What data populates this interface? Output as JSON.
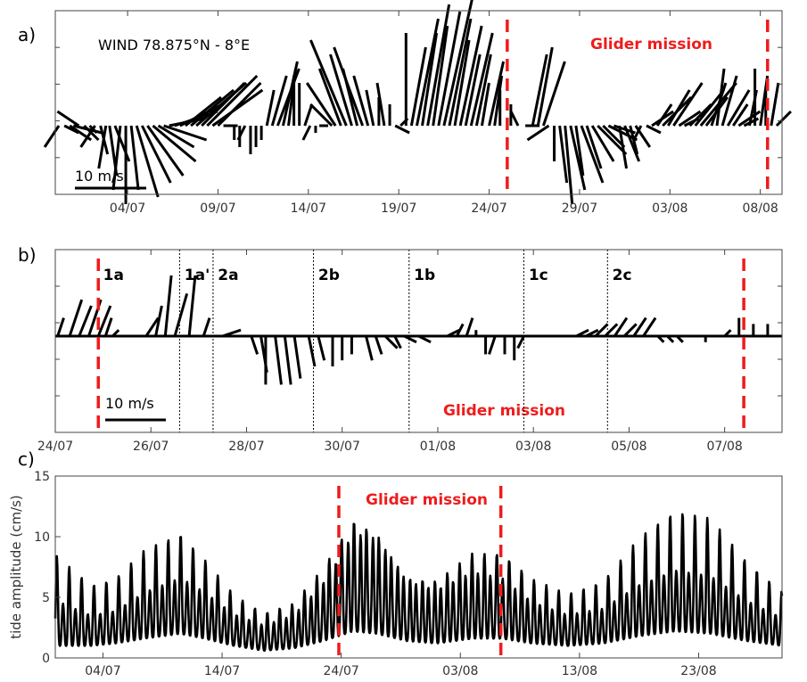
{
  "colors": {
    "mission": "#ee1c1c",
    "sticks": "#000000",
    "frame": "#444444"
  },
  "chart_data": [
    {
      "type": "stick",
      "panel_label": "a)",
      "title": "WIND 78.875°N - 8°E",
      "x_start": "2016-06-30",
      "xlim_days": [
        0,
        40.2
      ],
      "xticks": [
        {
          "label": "04/07",
          "day": 4
        },
        {
          "label": "09/07",
          "day": 9
        },
        {
          "label": "14/07",
          "day": 14
        },
        {
          "label": "19/07",
          "day": 19
        },
        {
          "label": "24/07",
          "day": 24
        },
        {
          "label": "29/07",
          "day": 29
        },
        {
          "label": "03/08",
          "day": 34
        },
        {
          "label": "08/08",
          "day": 39
        }
      ],
      "ylim": [
        -12,
        24
      ],
      "scale_label": "10 m/s",
      "scale_value": 10,
      "mission_label": "Glider mission",
      "mission_lines_days": [
        25.0,
        39.4
      ],
      "sticks": [
        [
          0.2,
          -2,
          -3
        ],
        [
          0.5,
          2,
          -1
        ],
        [
          0.8,
          3,
          -2
        ],
        [
          1.0,
          4,
          -1
        ],
        [
          1.3,
          -3,
          2
        ],
        [
          1.6,
          2,
          -2
        ],
        [
          1.9,
          1,
          -1
        ],
        [
          2.2,
          -2,
          -3
        ],
        [
          2.5,
          1,
          -4
        ],
        [
          2.8,
          -1,
          -6
        ],
        [
          3.0,
          1,
          -7
        ],
        [
          3.3,
          2,
          -5
        ],
        [
          3.6,
          -1,
          -9
        ],
        [
          3.9,
          0,
          -11
        ],
        [
          4.2,
          1,
          -9
        ],
        [
          4.5,
          3,
          -10
        ],
        [
          4.8,
          4,
          -8
        ],
        [
          5.1,
          5,
          -7
        ],
        [
          5.4,
          6,
          -5
        ],
        [
          5.7,
          5,
          -3
        ],
        [
          6.0,
          6,
          -2
        ],
        [
          6.3,
          5,
          1
        ],
        [
          6.6,
          6,
          2
        ],
        [
          6.9,
          6,
          3
        ],
        [
          7.2,
          5,
          4
        ],
        [
          7.5,
          6,
          5
        ],
        [
          7.8,
          7,
          6
        ],
        [
          8.1,
          6,
          6
        ],
        [
          8.4,
          7,
          7
        ],
        [
          8.7,
          7,
          5
        ],
        [
          9.0,
          6,
          6
        ],
        [
          9.3,
          2,
          0
        ],
        [
          9.6,
          1,
          0
        ],
        [
          9.9,
          0,
          -2
        ],
        [
          10.2,
          0,
          -3
        ],
        [
          10.5,
          -1,
          -2
        ],
        [
          10.8,
          0,
          -4
        ],
        [
          11.1,
          0,
          -3
        ],
        [
          11.4,
          0,
          -2
        ],
        [
          11.7,
          1,
          5
        ],
        [
          12.0,
          2,
          7
        ],
        [
          12.3,
          3,
          8
        ],
        [
          12.6,
          2,
          9
        ],
        [
          12.9,
          1,
          8
        ],
        [
          13.2,
          0,
          7
        ],
        [
          13.5,
          0,
          6
        ],
        [
          13.8,
          1,
          3
        ],
        [
          14.1,
          -1,
          -2
        ],
        [
          14.4,
          0,
          -1
        ],
        [
          14.7,
          1,
          0
        ],
        [
          15.0,
          -1,
          0
        ],
        [
          15.3,
          -3,
          3
        ],
        [
          15.5,
          -4,
          6
        ],
        [
          15.8,
          -3,
          8
        ],
        [
          16.1,
          -5,
          12
        ],
        [
          16.4,
          -3,
          10
        ],
        [
          16.7,
          -2,
          8
        ],
        [
          17.0,
          -4,
          11
        ],
        [
          17.3,
          -2,
          7
        ],
        [
          17.6,
          -1,
          5
        ],
        [
          17.9,
          0,
          4
        ],
        [
          18.2,
          -1,
          6
        ],
        [
          18.5,
          0,
          3
        ],
        [
          18.8,
          2,
          -1
        ],
        [
          19.1,
          1,
          1
        ],
        [
          19.4,
          0,
          13
        ],
        [
          19.7,
          2,
          11
        ],
        [
          20.0,
          3,
          15
        ],
        [
          20.3,
          2,
          13
        ],
        [
          20.6,
          3,
          17
        ],
        [
          20.9,
          2,
          14
        ],
        [
          21.2,
          3,
          16
        ],
        [
          21.5,
          4,
          18
        ],
        [
          21.8,
          3,
          15
        ],
        [
          22.1,
          2,
          12
        ],
        [
          22.4,
          3,
          14
        ],
        [
          22.7,
          2,
          10
        ],
        [
          23.0,
          3,
          13
        ],
        [
          23.3,
          2,
          10
        ],
        [
          23.6,
          1,
          6
        ],
        [
          24.0,
          2,
          9
        ],
        [
          24.3,
          1,
          7
        ],
        [
          24.6,
          0,
          5
        ],
        [
          25.2,
          0,
          3
        ],
        [
          25.6,
          -1,
          2
        ],
        [
          26.0,
          2,
          0
        ],
        [
          26.4,
          2,
          10
        ],
        [
          26.7,
          2,
          11
        ],
        [
          27.0,
          3,
          9
        ],
        [
          27.3,
          -3,
          -2
        ],
        [
          27.6,
          0,
          -5
        ],
        [
          27.9,
          1,
          -8
        ],
        [
          28.2,
          1,
          -11
        ],
        [
          28.5,
          2,
          -9
        ],
        [
          28.8,
          1,
          -7
        ],
        [
          29.1,
          3,
          -8
        ],
        [
          29.4,
          2,
          -6
        ],
        [
          29.7,
          3,
          -5
        ],
        [
          30.0,
          4,
          -4
        ],
        [
          30.3,
          3,
          -3
        ],
        [
          30.6,
          4,
          -2
        ],
        [
          30.9,
          3,
          -1
        ],
        [
          31.2,
          1,
          -6
        ],
        [
          31.5,
          2,
          -5
        ],
        [
          31.8,
          1,
          -4
        ],
        [
          32.1,
          2,
          -3
        ],
        [
          32.4,
          -1,
          -2
        ],
        [
          32.7,
          2,
          -1
        ],
        [
          33.0,
          3,
          2
        ],
        [
          33.3,
          2,
          3
        ],
        [
          33.6,
          4,
          4
        ],
        [
          33.9,
          3,
          5
        ],
        [
          34.2,
          4,
          6
        ],
        [
          34.5,
          3,
          2
        ],
        [
          34.8,
          2,
          1
        ],
        [
          35.1,
          3,
          3
        ],
        [
          35.4,
          4,
          5
        ],
        [
          35.7,
          5,
          6
        ],
        [
          36.0,
          3,
          4
        ],
        [
          36.3,
          2,
          6
        ],
        [
          36.6,
          1,
          8
        ],
        [
          36.9,
          2,
          7
        ],
        [
          37.2,
          3,
          5
        ],
        [
          37.5,
          2,
          3
        ],
        [
          37.8,
          3,
          2
        ],
        [
          38.1,
          2,
          1
        ],
        [
          38.4,
          1,
          5
        ],
        [
          38.7,
          0,
          8
        ],
        [
          39.0,
          1,
          7
        ],
        [
          39.3,
          0,
          5
        ],
        [
          39.6,
          1,
          6
        ],
        [
          39.9,
          2,
          2
        ]
      ]
    },
    {
      "type": "stick",
      "panel_label": "b)",
      "x_start": "2016-07-24",
      "xlim_days": [
        0,
        15.2
      ],
      "xticks": [
        {
          "label": "24/07",
          "day": 0
        },
        {
          "label": "26/07",
          "day": 2
        },
        {
          "label": "28/07",
          "day": 4
        },
        {
          "label": "30/07",
          "day": 6
        },
        {
          "label": "01/08",
          "day": 8
        },
        {
          "label": "03/08",
          "day": 10
        },
        {
          "label": "05/08",
          "day": 12
        },
        {
          "label": "07/08",
          "day": 14
        }
      ],
      "ylim": [
        -15,
        15
      ],
      "scale_label": "10 m/s",
      "scale_value": 10,
      "mission_label": "Glider mission",
      "mission_lines_days": [
        0.9,
        14.4
      ],
      "period_lines_days": [
        2.6,
        3.3,
        5.4,
        7.4,
        9.8,
        11.55
      ],
      "periods": [
        {
          "label": "1a",
          "day": 1.0
        },
        {
          "label": "1a'",
          "day": 2.7
        },
        {
          "label": "2a",
          "day": 3.4
        },
        {
          "label": "2b",
          "day": 5.5
        },
        {
          "label": "1b",
          "day": 7.5
        },
        {
          "label": "1c",
          "day": 9.9
        },
        {
          "label": "2c",
          "day": 11.65
        }
      ],
      "sticks": [
        [
          0.05,
          1,
          3
        ],
        [
          0.3,
          2,
          6
        ],
        [
          0.5,
          2,
          5
        ],
        [
          0.7,
          2,
          6
        ],
        [
          0.9,
          2,
          5
        ],
        [
          1.05,
          1,
          3
        ],
        [
          1.2,
          1,
          1
        ],
        [
          1.9,
          2,
          3
        ],
        [
          2.1,
          1,
          5
        ],
        [
          2.3,
          1,
          10
        ],
        [
          2.5,
          2,
          7
        ],
        [
          2.8,
          1,
          10
        ],
        [
          3.1,
          1,
          3
        ],
        [
          3.5,
          3,
          1
        ],
        [
          4.1,
          1,
          -3
        ],
        [
          4.3,
          1,
          -6
        ],
        [
          4.4,
          0,
          -8
        ],
        [
          4.6,
          1,
          -8
        ],
        [
          4.8,
          1,
          -8
        ],
        [
          5.0,
          1,
          -7
        ],
        [
          5.3,
          1,
          -5
        ],
        [
          5.5,
          1,
          -4
        ],
        [
          5.8,
          0,
          -5
        ],
        [
          6.0,
          0,
          -4
        ],
        [
          6.2,
          0,
          -3
        ],
        [
          6.5,
          1,
          -4
        ],
        [
          6.7,
          1,
          -3
        ],
        [
          6.9,
          2,
          -2
        ],
        [
          7.1,
          1,
          -2
        ],
        [
          7.3,
          2,
          -1
        ],
        [
          7.6,
          2,
          -1
        ],
        [
          7.9,
          2,
          0
        ],
        [
          8.2,
          2,
          1
        ],
        [
          8.4,
          1,
          2
        ],
        [
          8.6,
          1,
          3
        ],
        [
          8.8,
          0,
          1
        ],
        [
          9.0,
          0,
          -3
        ],
        [
          9.2,
          -1,
          -3
        ],
        [
          9.4,
          0,
          -3
        ],
        [
          9.6,
          0,
          -4
        ],
        [
          9.8,
          -1,
          -2
        ],
        [
          10.0,
          1,
          0
        ],
        [
          10.3,
          1,
          0
        ],
        [
          10.6,
          2,
          0
        ],
        [
          10.9,
          2,
          1
        ],
        [
          11.1,
          2,
          1
        ],
        [
          11.3,
          2,
          2
        ],
        [
          11.5,
          2,
          2
        ],
        [
          11.7,
          2,
          3
        ],
        [
          11.9,
          2,
          2
        ],
        [
          12.1,
          2,
          3
        ],
        [
          12.3,
          2,
          3
        ],
        [
          12.6,
          1,
          -1
        ],
        [
          12.8,
          1,
          -1
        ],
        [
          13.0,
          1,
          -1
        ],
        [
          13.3,
          2,
          0
        ],
        [
          13.6,
          0,
          -1
        ],
        [
          13.8,
          1,
          0
        ],
        [
          14.0,
          1,
          1
        ],
        [
          14.3,
          0,
          3
        ],
        [
          14.6,
          0,
          2
        ],
        [
          14.9,
          0,
          2
        ]
      ]
    },
    {
      "type": "line",
      "panel_label": "c)",
      "ylabel": "tide amplitude (cm/s)",
      "x_start": "2016-06-30",
      "xlim_days": [
        0,
        61
      ],
      "ylim": [
        0,
        15
      ],
      "yticks": [
        0,
        5,
        10,
        15
      ],
      "xticks": [
        {
          "label": "04/07",
          "day": 4
        },
        {
          "label": "14/07",
          "day": 14
        },
        {
          "label": "24/07",
          "day": 24
        },
        {
          "label": "03/08",
          "day": 34
        },
        {
          "label": "13/08",
          "day": 44
        },
        {
          "label": "23/08",
          "day": 54
        }
      ],
      "mission_label": "Glider mission",
      "mission_lines_days": [
        23.8,
        37.4
      ],
      "envelope": [
        {
          "day": 0,
          "max": 8.5,
          "min": 1.0
        },
        {
          "day": 3,
          "max": 6.0,
          "min": 1.0
        },
        {
          "day": 5,
          "max": 6.5,
          "min": 1.2
        },
        {
          "day": 7.5,
          "max": 9.0,
          "min": 1.6
        },
        {
          "day": 10.5,
          "max": 10.5,
          "min": 2.0
        },
        {
          "day": 12.5,
          "max": 8.5,
          "min": 1.6
        },
        {
          "day": 15,
          "max": 5.5,
          "min": 1.0
        },
        {
          "day": 17.5,
          "max": 4.0,
          "min": 0.6
        },
        {
          "day": 20,
          "max": 5.0,
          "min": 0.8
        },
        {
          "day": 22.5,
          "max": 8.5,
          "min": 1.4
        },
        {
          "day": 25,
          "max": 13.5,
          "min": 2.2
        },
        {
          "day": 27,
          "max": 12.5,
          "min": 2.0
        },
        {
          "day": 29.5,
          "max": 8.0,
          "min": 1.4
        },
        {
          "day": 32,
          "max": 7.5,
          "min": 1.2
        },
        {
          "day": 35,
          "max": 9.8,
          "min": 1.6
        },
        {
          "day": 37.5,
          "max": 9.5,
          "min": 1.6
        },
        {
          "day": 40,
          "max": 7.0,
          "min": 1.2
        },
        {
          "day": 43,
          "max": 5.5,
          "min": 1.0
        },
        {
          "day": 46,
          "max": 6.5,
          "min": 1.2
        },
        {
          "day": 49,
          "max": 10.0,
          "min": 1.8
        },
        {
          "day": 52,
          "max": 12.2,
          "min": 2.2
        },
        {
          "day": 55,
          "max": 11.5,
          "min": 2.0
        },
        {
          "day": 58,
          "max": 8.0,
          "min": 1.4
        },
        {
          "day": 61,
          "max": 5.5,
          "min": 1.0
        }
      ]
    }
  ]
}
